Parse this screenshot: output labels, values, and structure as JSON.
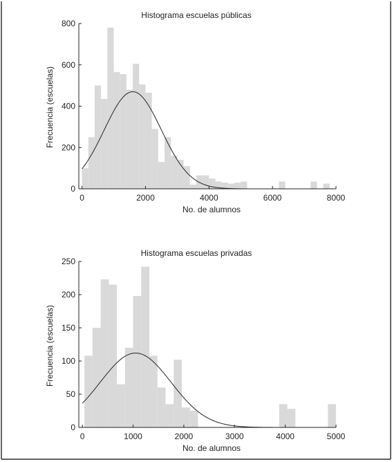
{
  "chart_data": [
    {
      "type": "bar",
      "title": "Histograma escuelas públicas",
      "xlabel": "No. de alumnos",
      "ylabel": "Frecuencia (escuelas)",
      "xlim": [
        -100,
        8000
      ],
      "ylim": [
        0,
        800
      ],
      "xticks": [
        0,
        2000,
        4000,
        6000,
        8000
      ],
      "yticks": [
        0,
        200,
        400,
        600,
        800
      ],
      "bin_width": 200,
      "bins": [
        {
          "x0": 0,
          "y": 100
        },
        {
          "x0": 200,
          "y": 250
        },
        {
          "x0": 400,
          "y": 500
        },
        {
          "x0": 600,
          "y": 435
        },
        {
          "x0": 800,
          "y": 780
        },
        {
          "x0": 1000,
          "y": 565
        },
        {
          "x0": 1200,
          "y": 555
        },
        {
          "x0": 1400,
          "y": 480
        },
        {
          "x0": 1600,
          "y": 605
        },
        {
          "x0": 1800,
          "y": 505
        },
        {
          "x0": 2000,
          "y": 465
        },
        {
          "x0": 2200,
          "y": 290
        },
        {
          "x0": 2400,
          "y": 130
        },
        {
          "x0": 2600,
          "y": 250
        },
        {
          "x0": 2800,
          "y": 160
        },
        {
          "x0": 3000,
          "y": 140
        },
        {
          "x0": 3200,
          "y": 110
        },
        {
          "x0": 3400,
          "y": 20
        },
        {
          "x0": 3600,
          "y": 65
        },
        {
          "x0": 3800,
          "y": 65
        },
        {
          "x0": 4000,
          "y": 50
        },
        {
          "x0": 4200,
          "y": 35
        },
        {
          "x0": 4400,
          "y": 30
        },
        {
          "x0": 4600,
          "y": 25
        },
        {
          "x0": 4800,
          "y": 30
        },
        {
          "x0": 5000,
          "y": 35
        },
        {
          "x0": 6200,
          "y": 35
        },
        {
          "x0": 7200,
          "y": 35
        },
        {
          "x0": 7600,
          "y": 25
        }
      ],
      "fit_curve": {
        "kind": "normal",
        "mean": 1600,
        "sd": 900,
        "peak": 470,
        "x_range": [
          0,
          5000
        ]
      }
    },
    {
      "type": "bar",
      "title": "Histograma escuelas privadas",
      "xlabel": "No. de alumnos",
      "ylabel": "Frecuencia (escuelas)",
      "xlim": [
        -70,
        5000
      ],
      "ylim": [
        0,
        250
      ],
      "xticks": [
        0,
        1000,
        2000,
        3000,
        4000,
        5000
      ],
      "yticks": [
        0,
        50,
        100,
        150,
        200,
        250
      ],
      "bin_width": 160,
      "bins": [
        {
          "x0": 40,
          "y": 108
        },
        {
          "x0": 200,
          "y": 150
        },
        {
          "x0": 360,
          "y": 223
        },
        {
          "x0": 520,
          "y": 215
        },
        {
          "x0": 680,
          "y": 65
        },
        {
          "x0": 840,
          "y": 120
        },
        {
          "x0": 1000,
          "y": 198
        },
        {
          "x0": 1160,
          "y": 242
        },
        {
          "x0": 1320,
          "y": 108
        },
        {
          "x0": 1480,
          "y": 60
        },
        {
          "x0": 1640,
          "y": 35
        },
        {
          "x0": 1800,
          "y": 102
        },
        {
          "x0": 1960,
          "y": 30
        },
        {
          "x0": 2120,
          "y": 25
        },
        {
          "x0": 3880,
          "y": 35
        },
        {
          "x0": 4040,
          "y": 28
        },
        {
          "x0": 4840,
          "y": 35
        }
      ],
      "fit_curve": {
        "kind": "normal",
        "mean": 1050,
        "sd": 700,
        "peak": 112,
        "x_range": [
          0,
          4000
        ]
      }
    }
  ]
}
